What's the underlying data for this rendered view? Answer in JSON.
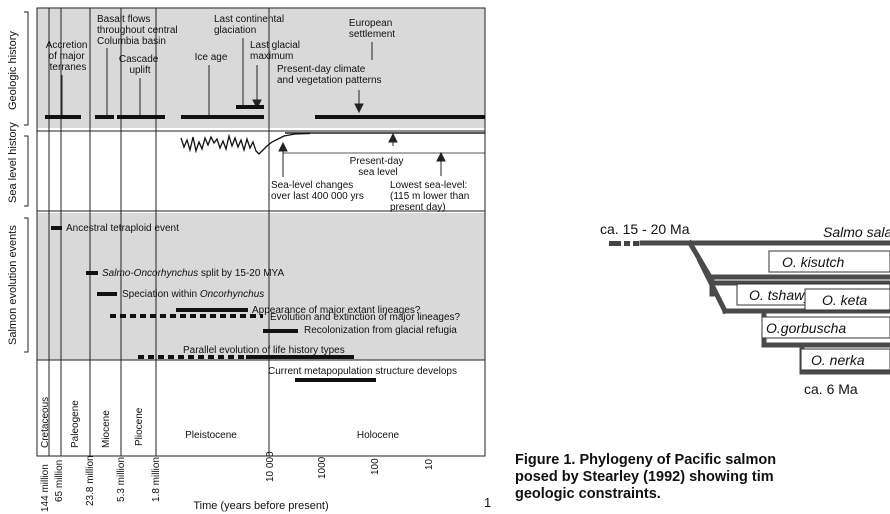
{
  "left_figure": {
    "section_labels": {
      "geologic": "Geologic history",
      "sea_level": "Sea level history",
      "salmon": "Salmon evolution events"
    },
    "geologic_annotations": [
      {
        "id": "accretion",
        "lines": [
          "Accretion",
          "of major",
          "terranes"
        ]
      },
      {
        "id": "basalt",
        "lines": [
          "Basalt flows",
          "throughout central",
          "Columbia basin"
        ]
      },
      {
        "id": "cascade",
        "lines": [
          "Cascade",
          "uplift"
        ]
      },
      {
        "id": "iceage",
        "lines": [
          "Ice age"
        ]
      },
      {
        "id": "lastcont",
        "lines": [
          "Last continental",
          "glaciation"
        ]
      },
      {
        "id": "lastglac",
        "lines": [
          "Last glacial",
          "maximum"
        ]
      },
      {
        "id": "european",
        "lines": [
          "European",
          "settlement"
        ]
      },
      {
        "id": "presentclimate",
        "lines": [
          "Present-day climate",
          "and vegetation patterns"
        ]
      }
    ],
    "sea_level_annotations": [
      {
        "id": "sealevelchanges",
        "lines": [
          "Sea-level changes",
          "over last 400 000 yrs"
        ]
      },
      {
        "id": "presentsea",
        "lines": [
          "Present-day",
          "sea level"
        ]
      },
      {
        "id": "lowestsea",
        "lines": [
          "Lowest sea-level:",
          "(115 m lower than",
          "present day)"
        ]
      }
    ],
    "salmon_events": [
      {
        "label": "Ancestral tetraploid event",
        "style": "solid"
      },
      {
        "label": "Salmo-Oncorhynchus split by 15-20 MYA",
        "style": "solid",
        "italic_prefix": "Salmo-Oncorhynchus"
      },
      {
        "label": "Speciation within Oncorhynchus",
        "style": "solid",
        "italic_suffix": "Oncorhynchus"
      },
      {
        "label": "Evolution and extinction of major lineages?",
        "style": "dotted"
      },
      {
        "label": "Appearance of major extant lineages?",
        "style": "solid"
      },
      {
        "label": "Recolonization from glacial refugia",
        "style": "solid"
      },
      {
        "label": "Parallel evolution of life history types",
        "style": "mixed"
      },
      {
        "label": "Current metapopulation structure develops",
        "style": "solid"
      }
    ],
    "epochs": [
      "Cretaceous",
      "Paleogene",
      "Miocene",
      "Pliocene",
      "Pleistocene",
      "Holocene"
    ],
    "time_ticks": [
      "144 million",
      "65 million",
      "23.8 million",
      "5.3 million",
      "1.8 million",
      "10 000",
      "1000",
      "100",
      "10"
    ],
    "x_axis_label": "Time (years before present)"
  },
  "right_figure": {
    "top_label": "ca. 15 - 20 Ma",
    "bottom_label": "ca. 6 Ma",
    "species": [
      "Salmo salar",
      "O. kisutch",
      "O. tshawytscha",
      "O. keta",
      "O.gorbuscha",
      "O. nerka"
    ]
  },
  "caption": {
    "lines": [
      "Figure 1. Phylogeny of Pacific salmon",
      "posed by Stearley (1992) showing tim",
      "geologic constraints."
    ]
  },
  "page_number": "1"
}
